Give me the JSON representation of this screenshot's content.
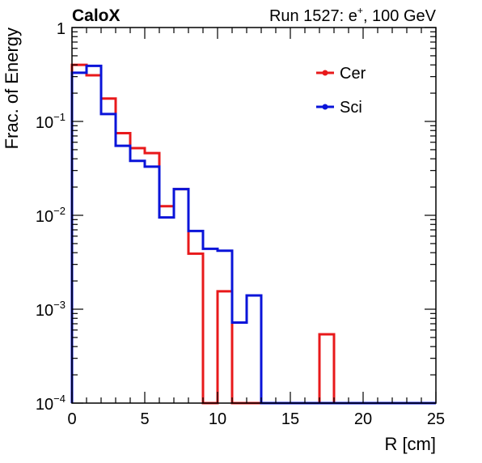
{
  "chart_data": {
    "type": "step",
    "title_left": "CaloX",
    "title_right": "Run 1527: e",
    "title_right_sup": "+",
    "title_right_tail": ", 100 GeV",
    "xlabel": "R [cm]",
    "ylabel": "Frac. of Energy",
    "xlim": [
      0,
      25
    ],
    "ylim": [
      0.0001,
      1
    ],
    "yscale": "log",
    "x_ticks": [
      0,
      5,
      10,
      15,
      20,
      25
    ],
    "y_ticks": [
      {
        "base": "1",
        "exp": ""
      },
      {
        "base": "10",
        "exp": "−1"
      },
      {
        "base": "10",
        "exp": "−2"
      },
      {
        "base": "10",
        "exp": "−3"
      },
      {
        "base": "10",
        "exp": "−4"
      }
    ],
    "legend_position": "top-right",
    "bin_edges": [
      0,
      1,
      2,
      3,
      4,
      5,
      6,
      7,
      8,
      9,
      10,
      11,
      12,
      13,
      14,
      15,
      16,
      17,
      18,
      19,
      20,
      21,
      22,
      23,
      24,
      25
    ],
    "series": [
      {
        "name": "Cer",
        "color": "#e8191b",
        "values": [
          0.4,
          0.31,
          0.175,
          0.075,
          0.052,
          0.046,
          0.0125,
          0.019,
          0.0039,
          0,
          0.00155,
          0,
          0,
          0,
          0,
          0,
          0,
          0.00054,
          0,
          0,
          0,
          0,
          0,
          0,
          0
        ]
      },
      {
        "name": "Sci",
        "color": "#0a14d9",
        "values": [
          0.33,
          0.39,
          0.12,
          0.055,
          0.038,
          0.033,
          0.0095,
          0.019,
          0.0068,
          0.0044,
          0.0042,
          0.00072,
          0.0014,
          0,
          0,
          0,
          0,
          0,
          0,
          0,
          0,
          0,
          0,
          0,
          0
        ]
      }
    ]
  }
}
